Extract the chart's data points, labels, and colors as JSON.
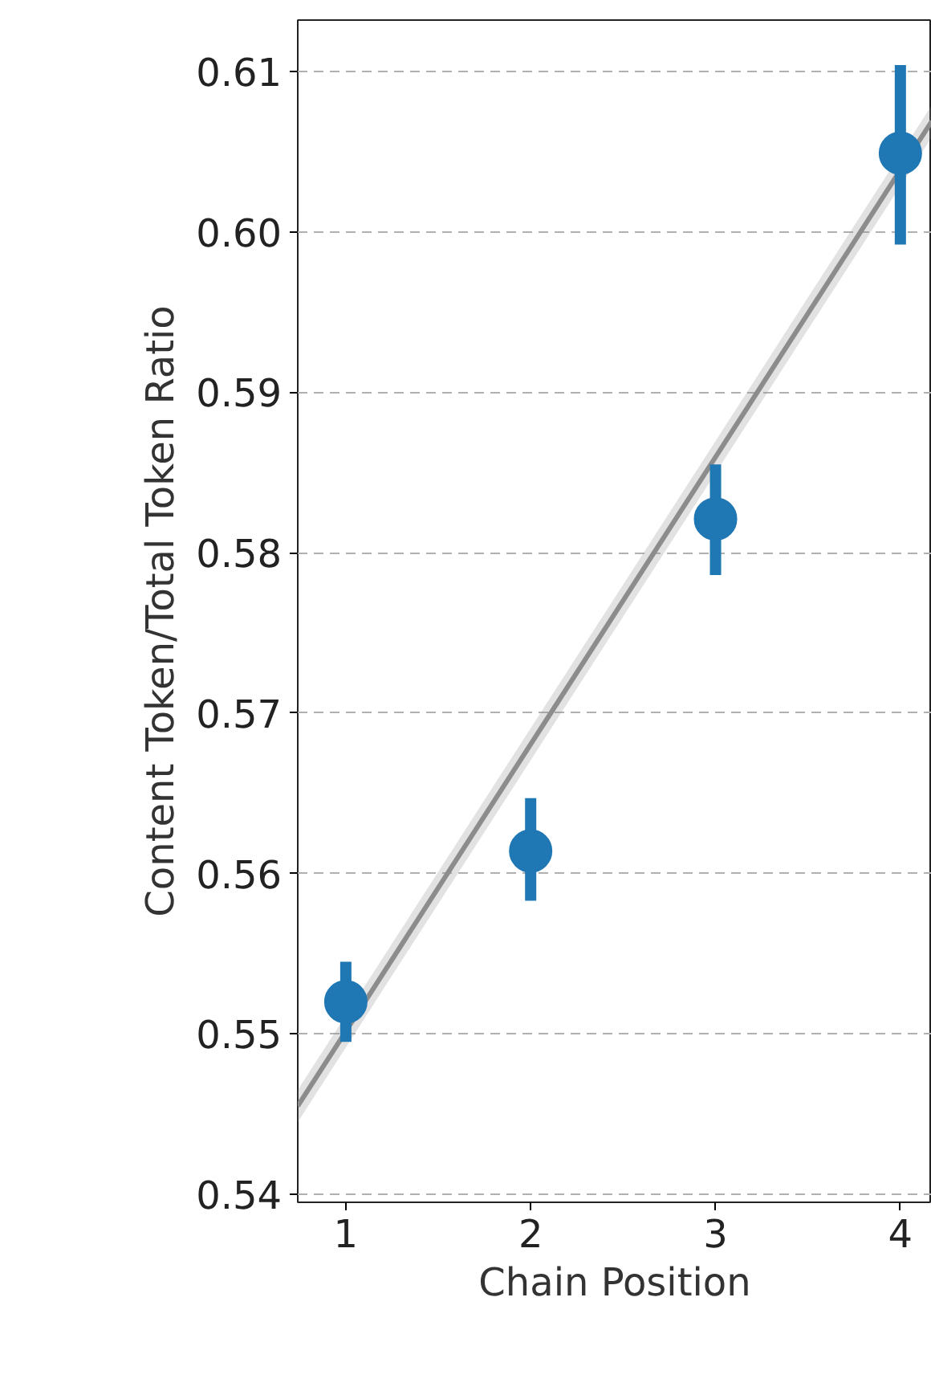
{
  "chart_data": {
    "type": "scatter",
    "xlabel": "Chain Position",
    "ylabel": "Content Token/Total Token Ratio",
    "xlim": [
      0.74,
      4.17
    ],
    "ylim": [
      0.5395,
      0.6132
    ],
    "xticks": [
      1,
      2,
      3,
      4
    ],
    "yticks": [
      {
        "value": 0.54,
        "label": "0.54"
      },
      {
        "value": 0.55,
        "label": "0.55"
      },
      {
        "value": 0.56,
        "label": "0.56"
      },
      {
        "value": 0.57,
        "label": "0.57"
      },
      {
        "value": 0.58,
        "label": "0.58"
      },
      {
        "value": 0.59,
        "label": "0.59"
      },
      {
        "value": 0.6,
        "label": "0.60"
      },
      {
        "value": 0.61,
        "label": "0.61"
      }
    ],
    "grid": "y",
    "series": [
      {
        "type": "line",
        "marker": "none",
        "color": "#8c8c8c",
        "x": [
          0.74,
          4.17
        ],
        "values": [
          0.5455,
          0.6069
        ],
        "lower": [
          0.5445,
          0.6059
        ],
        "upper": [
          0.5465,
          0.6079
        ]
      },
      {
        "marker": "circle",
        "color": "#1f77b4",
        "x": [
          1,
          2,
          3,
          4
        ],
        "values": [
          0.552,
          0.5614,
          0.5821,
          0.6049
        ],
        "errors": [
          [
            0.5495,
            0.5545
          ],
          [
            0.5583,
            0.5647
          ],
          [
            0.5786,
            0.5855
          ],
          [
            0.5992,
            0.6104
          ]
        ]
      }
    ]
  }
}
